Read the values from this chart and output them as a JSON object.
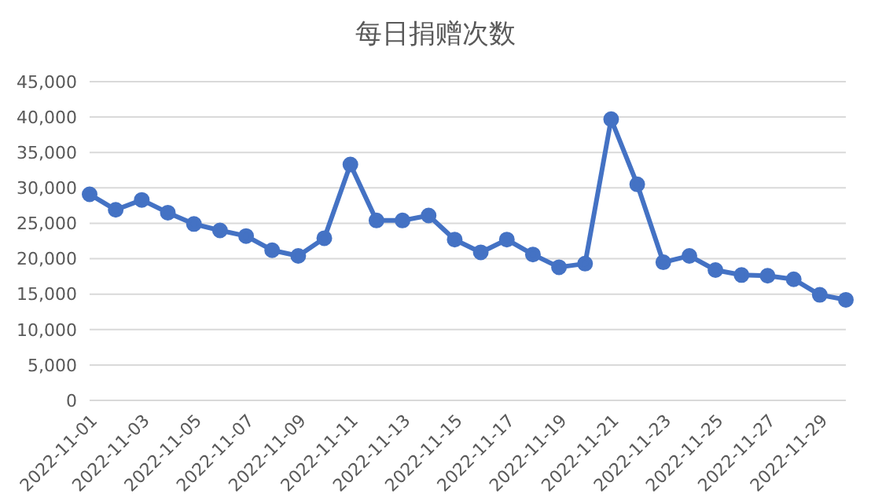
{
  "chart_data": {
    "type": "line",
    "title": "每日捐赠次数",
    "categories": [
      "2022-11-01",
      null,
      "2022-11-03",
      null,
      "2022-11-05",
      null,
      "2022-11-07",
      null,
      "2022-11-09",
      null,
      "2022-11-11",
      null,
      "2022-11-13",
      null,
      "2022-11-15",
      null,
      "2022-11-17",
      null,
      "2022-11-19",
      null,
      "2022-11-21",
      null,
      "2022-11-23",
      null,
      "2022-11-25",
      null,
      "2022-11-27",
      null,
      "2022-11-29",
      null
    ],
    "series": [
      {
        "color": "#4472c4",
        "values": [
          29100,
          26900,
          28300,
          26500,
          24900,
          24000,
          23200,
          21200,
          20400,
          22900,
          33300,
          25400,
          25400,
          26100,
          22700,
          20900,
          22700,
          20600,
          18800,
          19300,
          39700,
          30500,
          19500,
          20400,
          18400,
          17700,
          17600,
          17100,
          14900,
          14200
        ]
      }
    ],
    "ylim": [
      0,
      45000
    ],
    "yticks": [
      0,
      {
        "value": 5000,
        "label": "5,000"
      },
      {
        "value": 10000,
        "label": "10,000"
      },
      {
        "value": 15000,
        "label": "15,000"
      },
      {
        "value": 20000,
        "label": "20,000"
      },
      {
        "value": 25000,
        "label": "25,000"
      },
      {
        "value": 30000,
        "label": "30,000"
      },
      {
        "value": 35000,
        "label": "35,000"
      },
      {
        "value": 40000,
        "label": "40,000"
      },
      {
        "value": 45000,
        "label": "45,000"
      }
    ],
    "grid": "y",
    "marker": "circle",
    "line_style": "solid",
    "legend": false
  }
}
